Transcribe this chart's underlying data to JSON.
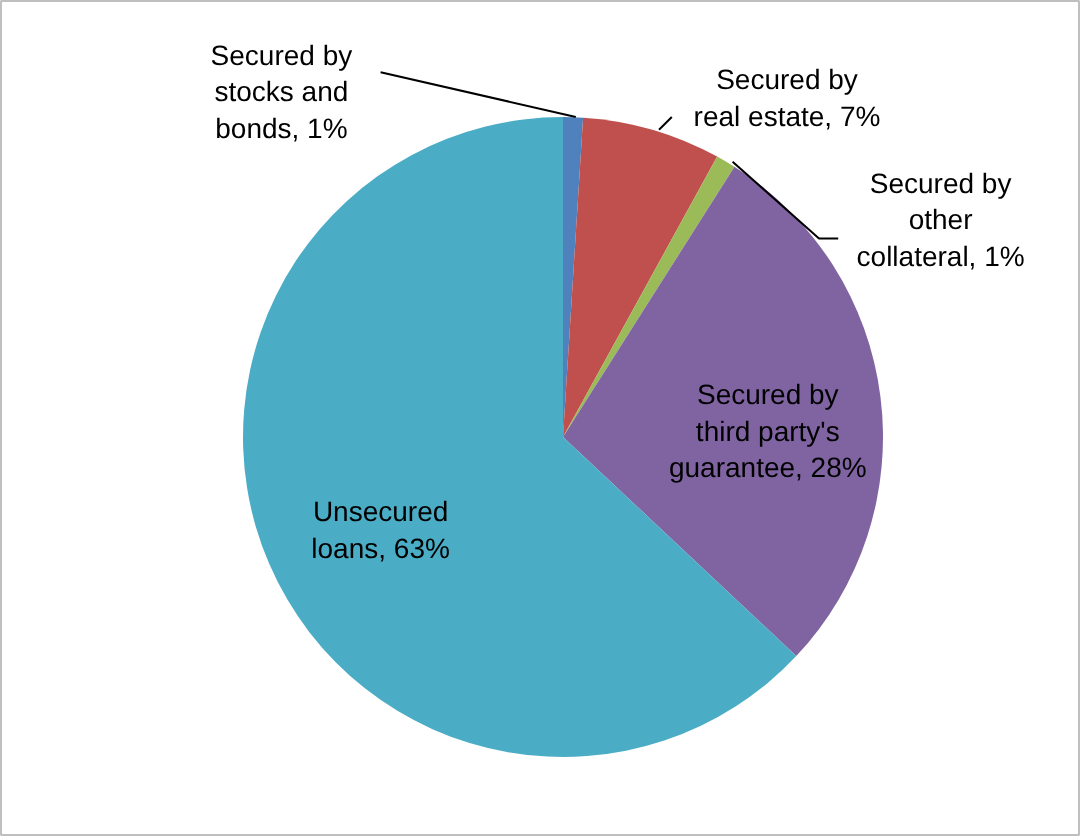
{
  "chart_data": {
    "type": "pie",
    "categories": [
      "Secured by stocks and bonds",
      "Secured by real estate",
      "Secured by other collateral",
      "Secured by third party's guarantee",
      "Unsecured loans"
    ],
    "values": [
      1,
      7,
      1,
      28,
      63
    ],
    "value_labels": [
      "1%",
      "7%",
      "1%",
      "28%",
      "63%"
    ],
    "colors": [
      "#4f81bd",
      "#c0504d",
      "#9bbb59",
      "#8064a2",
      "#4bacc6"
    ]
  }
}
